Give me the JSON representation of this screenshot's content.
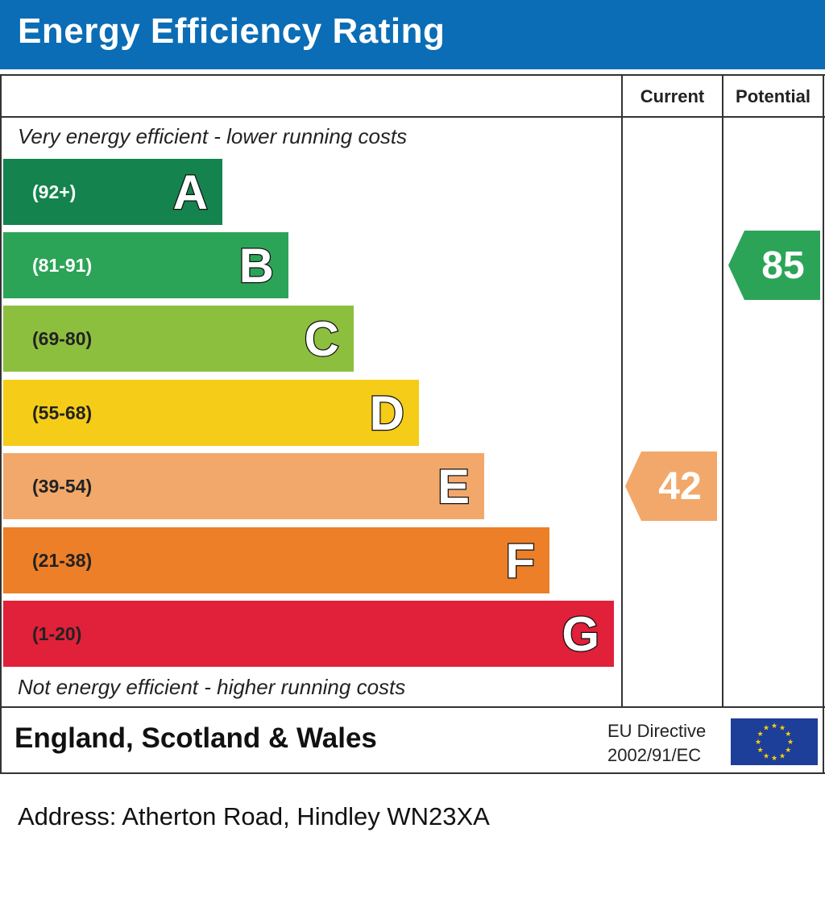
{
  "title": "Energy Efficiency Rating",
  "columns": {
    "current": "Current",
    "potential": "Potential"
  },
  "top_note": "Very energy efficient - lower running costs",
  "bottom_note": "Not energy efficient - higher running costs",
  "region": "England, Scotland & Wales",
  "eu_directive": {
    "line1": "EU Directive",
    "line2": "2002/91/EC"
  },
  "eu_flag_icon": "eu-flag-icon",
  "address": "Address: Atherton Road, Hindley WN23XA",
  "chart_data": {
    "type": "bar",
    "bands": [
      {
        "letter": "A",
        "range": "(92+)",
        "color": "#14834e",
        "range_color": "#ffffff"
      },
      {
        "letter": "B",
        "range": "(81-91)",
        "color": "#2ca457",
        "range_color": "#ffffff"
      },
      {
        "letter": "C",
        "range": "(69-80)",
        "color": "#8dbf3f",
        "range_color": "#222222"
      },
      {
        "letter": "D",
        "range": "(55-68)",
        "color": "#f5cc17",
        "range_color": "#222222"
      },
      {
        "letter": "E",
        "range": "(39-54)",
        "color": "#f2a86a",
        "range_color": "#222222"
      },
      {
        "letter": "F",
        "range": "(21-38)",
        "color": "#ec7f28",
        "range_color": "#222222"
      },
      {
        "letter": "G",
        "range": "(1-20)",
        "color": "#e12039",
        "range_color": "#222222"
      }
    ],
    "current": {
      "value": 42,
      "band": "E",
      "color": "#f2a86a"
    },
    "potential": {
      "value": 85,
      "band": "B",
      "color": "#2ca457"
    }
  }
}
